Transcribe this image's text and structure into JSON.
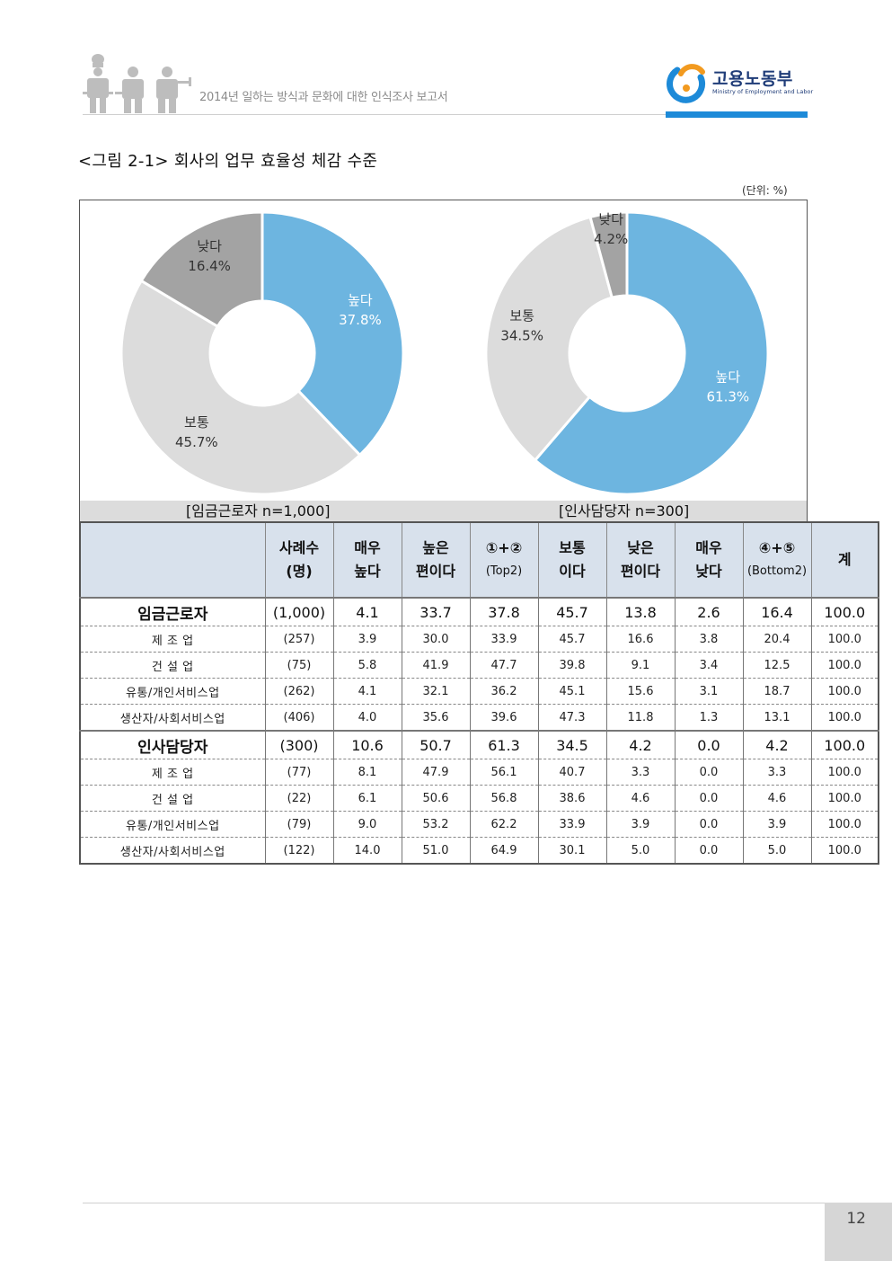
{
  "header": {
    "report_title": "2014년 일하는 방식과 문화에 대한 인식조사 보고서",
    "logo_name": "고용노동부",
    "logo_sub": "Ministry of Employment and Labor"
  },
  "figure": {
    "title": "<그림 2-1> 회사의 업무 효율성 체감 수준",
    "unit": "(단위: %)"
  },
  "chart_data": [
    {
      "type": "pie",
      "donut": true,
      "caption": "[임금근로자  n=1,000]",
      "slices": [
        {
          "label": "높다",
          "value": 37.8,
          "display": "37.8%",
          "color": "#6db5e0"
        },
        {
          "label": "보통",
          "value": 45.7,
          "display": "45.7%",
          "color": "#dcdcdc"
        },
        {
          "label": "낮다",
          "value": 16.4,
          "display": "16.4%",
          "color": "#a3a3a3"
        }
      ]
    },
    {
      "type": "pie",
      "donut": true,
      "caption": "[인사담당자  n=300]",
      "slices": [
        {
          "label": "높다",
          "value": 61.3,
          "display": "61.3%",
          "color": "#6db5e0"
        },
        {
          "label": "보통",
          "value": 34.5,
          "display": "34.5%",
          "color": "#dcdcdc"
        },
        {
          "label": "낮다",
          "value": 4.2,
          "display": "4.2%",
          "color": "#a3a3a3"
        }
      ]
    }
  ],
  "table": {
    "headers": [
      {
        "l1": "",
        "l2": ""
      },
      {
        "l1": "사례수",
        "l2": "(명)"
      },
      {
        "l1": "매우",
        "l2": "높다"
      },
      {
        "l1": "높은",
        "l2": "편이다"
      },
      {
        "l1": "①+②",
        "l2": "(Top2)"
      },
      {
        "l1": "보통",
        "l2": "이다"
      },
      {
        "l1": "낮은",
        "l2": "편이다"
      },
      {
        "l1": "매우",
        "l2": "낮다"
      },
      {
        "l1": "④+⑤",
        "l2": "(Bottom2)"
      },
      {
        "l1": "계",
        "l2": ""
      }
    ],
    "rows": [
      {
        "kind": "grp",
        "cells": [
          "임금근로자",
          "(1,000)",
          "4.1",
          "33.7",
          "37.8",
          "45.7",
          "13.8",
          "2.6",
          "16.4",
          "100.0"
        ]
      },
      {
        "kind": "sub",
        "cells": [
          "제 조 업",
          "(257)",
          "3.9",
          "30.0",
          "33.9",
          "45.7",
          "16.6",
          "3.8",
          "20.4",
          "100.0"
        ]
      },
      {
        "kind": "sub",
        "cells": [
          "건 설 업",
          "(75)",
          "5.8",
          "41.9",
          "47.7",
          "39.8",
          "9.1",
          "3.4",
          "12.5",
          "100.0"
        ]
      },
      {
        "kind": "sub",
        "cells": [
          "유통/개인서비스업",
          "(262)",
          "4.1",
          "32.1",
          "36.2",
          "45.1",
          "15.6",
          "3.1",
          "18.7",
          "100.0"
        ]
      },
      {
        "kind": "sub",
        "cells": [
          "생산자/사회서비스업",
          "(406)",
          "4.0",
          "35.6",
          "39.6",
          "47.3",
          "11.8",
          "1.3",
          "13.1",
          "100.0"
        ]
      },
      {
        "kind": "grp2",
        "cells": [
          "인사담당자",
          "(300)",
          "10.6",
          "50.7",
          "61.3",
          "34.5",
          "4.2",
          "0.0",
          "4.2",
          "100.0"
        ]
      },
      {
        "kind": "sub",
        "cells": [
          "제 조 업",
          "(77)",
          "8.1",
          "47.9",
          "56.1",
          "40.7",
          "3.3",
          "0.0",
          "3.3",
          "100.0"
        ]
      },
      {
        "kind": "sub",
        "cells": [
          "건 설 업",
          "(22)",
          "6.1",
          "50.6",
          "56.8",
          "38.6",
          "4.6",
          "0.0",
          "4.6",
          "100.0"
        ]
      },
      {
        "kind": "sub",
        "cells": [
          "유통/개인서비스업",
          "(79)",
          "9.0",
          "53.2",
          "62.2",
          "33.9",
          "3.9",
          "0.0",
          "3.9",
          "100.0"
        ]
      },
      {
        "kind": "last",
        "cells": [
          "생산자/사회서비스업",
          "(122)",
          "14.0",
          "51.0",
          "64.9",
          "30.1",
          "5.0",
          "0.0",
          "5.0",
          "100.0"
        ]
      }
    ]
  },
  "footer": {
    "page_number": "12"
  }
}
